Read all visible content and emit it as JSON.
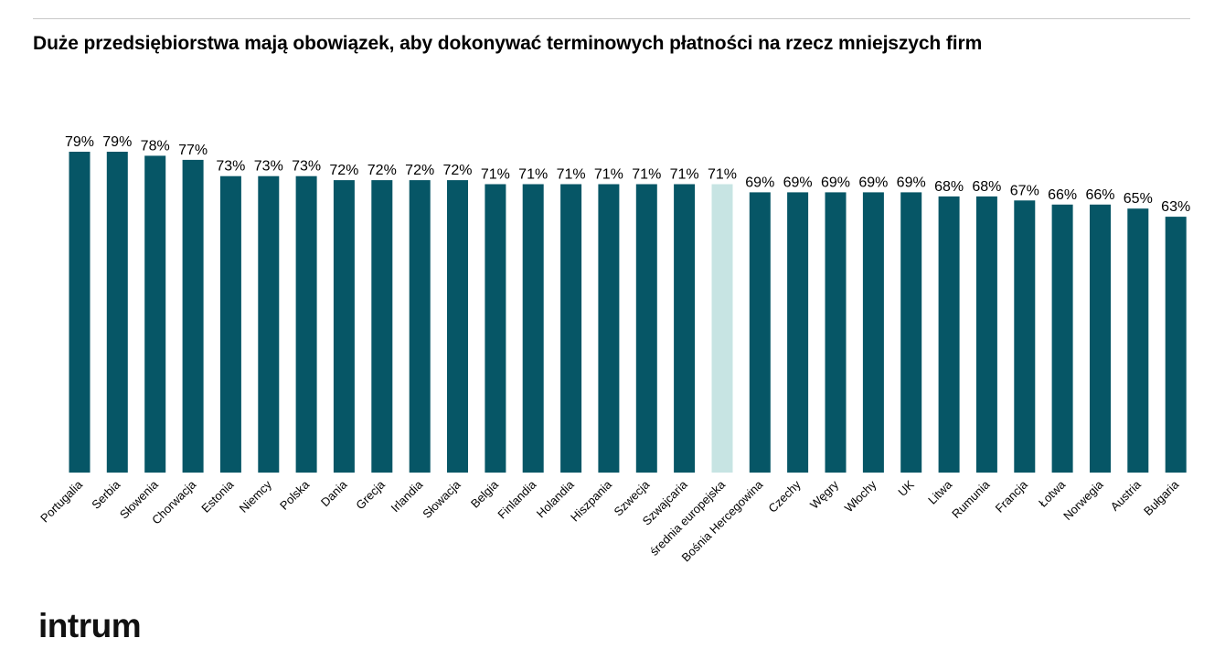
{
  "title": "Duże przedsiębiorstwa mają obowiązek, aby dokonywać terminowych płatności na rzecz mniejszych firm",
  "brand": "intrum",
  "colors": {
    "bar": "#065666",
    "highlight_bar": "#c7e4e3",
    "rule": "#c8c8c8",
    "text": "#000000"
  },
  "chart_data": {
    "type": "bar",
    "title": "Duże przedsiębiorstwa mają obowiązek, aby dokonywać terminowych płatności na rzecz mniejszych firm",
    "xlabel": "",
    "ylabel": "",
    "value_suffix": "%",
    "ylim": [
      0,
      79
    ],
    "grid": false,
    "legend": "none",
    "highlight_category": "średnia europejska",
    "categories": [
      "Portugalia",
      "Serbia",
      "Słowenia",
      "Chorwacja",
      "Estonia",
      "Niemcy",
      "Polska",
      "Dania",
      "Grecja",
      "Irlandia",
      "Słowacja",
      "Belgia",
      "Finlandia",
      "Holandia",
      "Hiszpania",
      "Szwecja",
      "Szwajcaria",
      "średnia europejska",
      "Bośnia Hercegowina",
      "Czechy",
      "Węgry",
      "Włochy",
      "UK",
      "Litwa",
      "Rumunia",
      "Francja",
      "Łotwa",
      "Norwegia",
      "Austria",
      "Bułgaria"
    ],
    "values": [
      79,
      79,
      78,
      77,
      73,
      73,
      73,
      72,
      72,
      72,
      72,
      71,
      71,
      71,
      71,
      71,
      71,
      71,
      69,
      69,
      69,
      69,
      69,
      68,
      68,
      67,
      66,
      66,
      65,
      63
    ]
  }
}
